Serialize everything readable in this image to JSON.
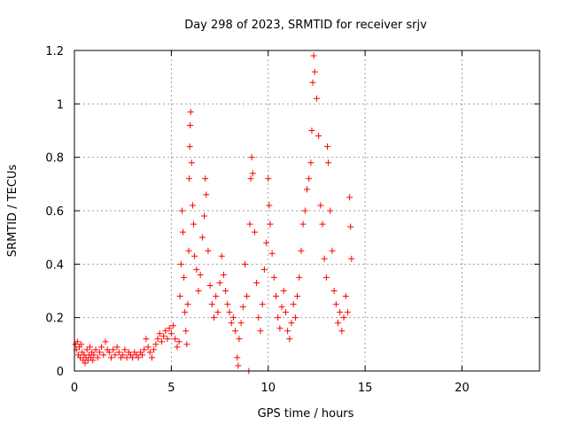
{
  "chart_data": {
    "type": "scatter",
    "title": "Day 298 of 2023, SRMTID for receiver srjv",
    "xlabel": "GPS time / hours",
    "ylabel": "SRMTID / TECUs",
    "xlim": [
      0,
      24
    ],
    "ylim": [
      0,
      1.2
    ],
    "x_ticks": [
      0,
      5,
      10,
      15,
      20
    ],
    "y_ticks": [
      0,
      0.2,
      0.4,
      0.6,
      0.8,
      1,
      1.2
    ],
    "x_tick_labels": [
      "0",
      "5",
      "10",
      "15",
      "20"
    ],
    "y_tick_labels": [
      "0",
      "0.2",
      "0.4",
      "0.6",
      "0.8",
      "1",
      "1.2"
    ],
    "grid": true,
    "marker": "+",
    "series": [
      {
        "name": "SRMTID",
        "color": "#ff0000",
        "points": [
          [
            0.05,
            0.1
          ],
          [
            0.1,
            0.08
          ],
          [
            0.15,
            0.11
          ],
          [
            0.2,
            0.06
          ],
          [
            0.25,
            0.09
          ],
          [
            0.3,
            0.05
          ],
          [
            0.35,
            0.1
          ],
          [
            0.4,
            0.07
          ],
          [
            0.45,
            0.04
          ],
          [
            0.5,
            0.06
          ],
          [
            0.55,
            0.03
          ],
          [
            0.6,
            0.05
          ],
          [
            0.65,
            0.08
          ],
          [
            0.7,
            0.04
          ],
          [
            0.75,
            0.06
          ],
          [
            0.8,
            0.09
          ],
          [
            0.85,
            0.05
          ],
          [
            0.9,
            0.07
          ],
          [
            0.95,
            0.04
          ],
          [
            1.0,
            0.06
          ],
          [
            1.1,
            0.08
          ],
          [
            1.2,
            0.05
          ],
          [
            1.3,
            0.07
          ],
          [
            1.4,
            0.09
          ],
          [
            1.5,
            0.06
          ],
          [
            1.6,
            0.11
          ],
          [
            1.7,
            0.08
          ],
          [
            1.8,
            0.07
          ],
          [
            1.9,
            0.05
          ],
          [
            2.0,
            0.08
          ],
          [
            2.1,
            0.06
          ],
          [
            2.2,
            0.09
          ],
          [
            2.3,
            0.07
          ],
          [
            2.4,
            0.05
          ],
          [
            2.5,
            0.06
          ],
          [
            2.6,
            0.08
          ],
          [
            2.7,
            0.05
          ],
          [
            2.8,
            0.07
          ],
          [
            2.9,
            0.06
          ],
          [
            3.0,
            0.05
          ],
          [
            3.1,
            0.07
          ],
          [
            3.2,
            0.06
          ],
          [
            3.3,
            0.05
          ],
          [
            3.4,
            0.07
          ],
          [
            3.5,
            0.06
          ],
          [
            3.6,
            0.08
          ],
          [
            3.7,
            0.12
          ],
          [
            3.8,
            0.09
          ],
          [
            3.9,
            0.07
          ],
          [
            4.0,
            0.05
          ],
          [
            4.1,
            0.08
          ],
          [
            4.2,
            0.1
          ],
          [
            4.3,
            0.12
          ],
          [
            4.4,
            0.14
          ],
          [
            4.5,
            0.11
          ],
          [
            4.6,
            0.13
          ],
          [
            4.7,
            0.15
          ],
          [
            4.8,
            0.12
          ],
          [
            4.9,
            0.16
          ],
          [
            5.0,
            0.14
          ],
          [
            5.1,
            0.17
          ],
          [
            5.2,
            0.12
          ],
          [
            5.3,
            0.09
          ],
          [
            5.4,
            0.11
          ],
          [
            5.45,
            0.28
          ],
          [
            5.5,
            0.4
          ],
          [
            5.55,
            0.6
          ],
          [
            5.6,
            0.52
          ],
          [
            5.65,
            0.35
          ],
          [
            5.7,
            0.22
          ],
          [
            5.75,
            0.15
          ],
          [
            5.8,
            0.1
          ],
          [
            5.85,
            0.25
          ],
          [
            5.9,
            0.45
          ],
          [
            5.92,
            0.72
          ],
          [
            5.95,
            0.84
          ],
          [
            5.97,
            0.92
          ],
          [
            6.0,
            0.97
          ],
          [
            6.05,
            0.78
          ],
          [
            6.1,
            0.62
          ],
          [
            6.15,
            0.55
          ],
          [
            6.2,
            0.43
          ],
          [
            6.3,
            0.38
          ],
          [
            6.4,
            0.3
          ],
          [
            6.5,
            0.36
          ],
          [
            6.6,
            0.5
          ],
          [
            6.7,
            0.58
          ],
          [
            6.75,
            0.72
          ],
          [
            6.8,
            0.66
          ],
          [
            6.9,
            0.45
          ],
          [
            7.0,
            0.32
          ],
          [
            7.1,
            0.25
          ],
          [
            7.2,
            0.2
          ],
          [
            7.3,
            0.28
          ],
          [
            7.4,
            0.22
          ],
          [
            7.5,
            0.33
          ],
          [
            7.6,
            0.43
          ],
          [
            7.7,
            0.36
          ],
          [
            7.8,
            0.3
          ],
          [
            7.9,
            0.25
          ],
          [
            8.0,
            0.22
          ],
          [
            8.1,
            0.18
          ],
          [
            8.2,
            0.2
          ],
          [
            8.3,
            0.15
          ],
          [
            8.4,
            0.05
          ],
          [
            8.45,
            0.02
          ],
          [
            8.5,
            0.12
          ],
          [
            8.6,
            0.18
          ],
          [
            8.7,
            0.24
          ],
          [
            8.8,
            0.4
          ],
          [
            8.9,
            0.28
          ],
          [
            9.0,
            0.0
          ],
          [
            9.05,
            0.55
          ],
          [
            9.1,
            0.72
          ],
          [
            9.15,
            0.8
          ],
          [
            9.2,
            0.74
          ],
          [
            9.3,
            0.52
          ],
          [
            9.4,
            0.33
          ],
          [
            9.5,
            0.2
          ],
          [
            9.6,
            0.15
          ],
          [
            9.7,
            0.25
          ],
          [
            9.8,
            0.38
          ],
          [
            9.9,
            0.48
          ],
          [
            10.0,
            0.72
          ],
          [
            10.05,
            0.62
          ],
          [
            10.1,
            0.55
          ],
          [
            10.2,
            0.44
          ],
          [
            10.3,
            0.35
          ],
          [
            10.4,
            0.28
          ],
          [
            10.5,
            0.2
          ],
          [
            10.6,
            0.16
          ],
          [
            10.7,
            0.24
          ],
          [
            10.8,
            0.3
          ],
          [
            10.9,
            0.22
          ],
          [
            11.0,
            0.15
          ],
          [
            11.1,
            0.12
          ],
          [
            11.2,
            0.18
          ],
          [
            11.3,
            0.25
          ],
          [
            11.4,
            0.2
          ],
          [
            11.5,
            0.28
          ],
          [
            11.6,
            0.35
          ],
          [
            11.7,
            0.45
          ],
          [
            11.8,
            0.55
          ],
          [
            11.9,
            0.6
          ],
          [
            12.0,
            0.68
          ],
          [
            12.1,
            0.72
          ],
          [
            12.2,
            0.78
          ],
          [
            12.25,
            0.9
          ],
          [
            12.3,
            1.08
          ],
          [
            12.35,
            1.18
          ],
          [
            12.4,
            1.12
          ],
          [
            12.5,
            1.02
          ],
          [
            12.6,
            0.88
          ],
          [
            12.7,
            0.62
          ],
          [
            12.8,
            0.55
          ],
          [
            12.9,
            0.42
          ],
          [
            13.0,
            0.35
          ],
          [
            13.05,
            0.84
          ],
          [
            13.1,
            0.78
          ],
          [
            13.2,
            0.6
          ],
          [
            13.3,
            0.45
          ],
          [
            13.4,
            0.3
          ],
          [
            13.5,
            0.25
          ],
          [
            13.6,
            0.18
          ],
          [
            13.7,
            0.22
          ],
          [
            13.8,
            0.15
          ],
          [
            13.9,
            0.2
          ],
          [
            14.0,
            0.28
          ],
          [
            14.1,
            0.22
          ],
          [
            14.2,
            0.65
          ],
          [
            14.25,
            0.54
          ],
          [
            14.3,
            0.42
          ]
        ]
      }
    ]
  }
}
